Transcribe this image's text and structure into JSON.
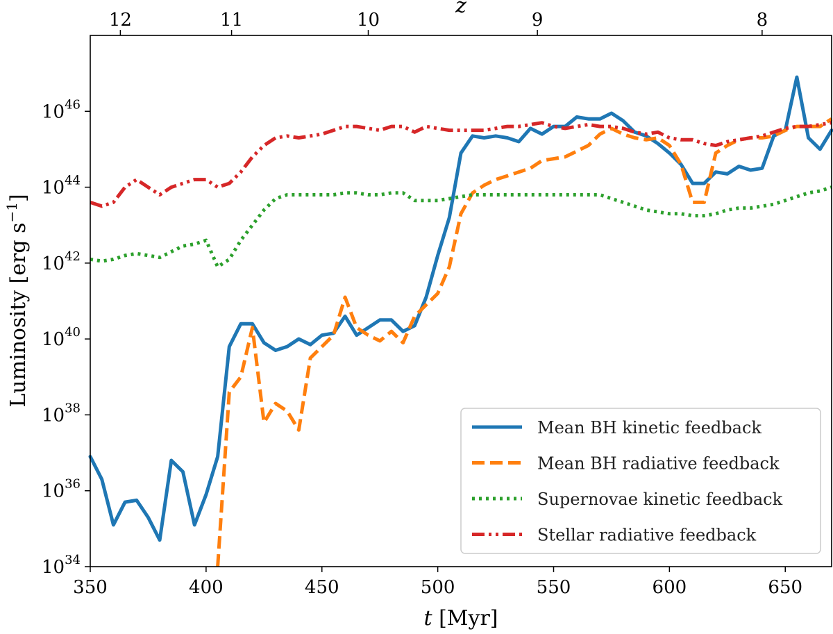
{
  "chart_data": {
    "type": "line",
    "xlabel": "t [Myr]",
    "ylabel": "Luminosity [erg s^-1]",
    "top_xlabel": "z",
    "xlim": [
      350,
      670
    ],
    "ylim_log10": [
      34,
      48
    ],
    "y_scale": "log",
    "grid": false,
    "legend_position": "bottom-right",
    "x_ticks": [
      350,
      400,
      450,
      500,
      550,
      600,
      650
    ],
    "x_tick_labels": [
      "350",
      "400",
      "450",
      "500",
      "550",
      "600",
      "650"
    ],
    "y_ticks_log10": [
      34,
      36,
      38,
      40,
      42,
      44,
      46
    ],
    "y_tick_labels": [
      "10^34",
      "10^36",
      "10^38",
      "10^40",
      "10^42",
      "10^44",
      "10^46"
    ],
    "top_ticks": [
      {
        "label": "12",
        "t": 363
      },
      {
        "label": "11",
        "t": 411
      },
      {
        "label": "10",
        "t": 470
      },
      {
        "label": "9",
        "t": 543
      },
      {
        "label": "8",
        "t": 640
      }
    ],
    "series": [
      {
        "name": "Mean BH kinetic feedback",
        "color": "#1f77b4",
        "style": "solid",
        "t": [
          350,
          355,
          360,
          365,
          370,
          375,
          380,
          385,
          390,
          395,
          400,
          405,
          410,
          415,
          420,
          425,
          430,
          435,
          440,
          445,
          450,
          455,
          460,
          465,
          470,
          475,
          480,
          485,
          490,
          495,
          500,
          505,
          510,
          515,
          520,
          525,
          530,
          535,
          540,
          545,
          550,
          555,
          560,
          565,
          570,
          575,
          580,
          585,
          590,
          595,
          600,
          605,
          610,
          615,
          620,
          625,
          630,
          635,
          640,
          645,
          650,
          655,
          660,
          665,
          670
        ],
        "log10_L": [
          36.9,
          36.3,
          35.1,
          35.7,
          35.75,
          35.3,
          34.7,
          36.8,
          36.5,
          35.1,
          35.9,
          36.9,
          39.8,
          40.4,
          40.4,
          39.9,
          39.7,
          39.8,
          40.0,
          39.85,
          40.1,
          40.15,
          40.6,
          40.1,
          40.3,
          40.5,
          40.5,
          40.2,
          40.35,
          41.1,
          42.2,
          43.2,
          44.9,
          45.35,
          45.3,
          45.35,
          45.3,
          45.2,
          45.55,
          45.4,
          45.6,
          45.6,
          45.85,
          45.8,
          45.8,
          45.95,
          45.75,
          45.45,
          45.35,
          45.15,
          44.9,
          44.6,
          44.1,
          44.1,
          44.4,
          44.35,
          44.55,
          44.45,
          44.5,
          45.35,
          45.5,
          46.9,
          45.3,
          45.0,
          45.5
        ]
      },
      {
        "name": "Mean BH radiative feedback",
        "color": "#ff7f0e",
        "style": "dashed",
        "t": [
          405,
          410,
          415,
          420,
          425,
          430,
          435,
          440,
          445,
          450,
          455,
          460,
          465,
          470,
          475,
          480,
          485,
          490,
          495,
          500,
          505,
          510,
          515,
          520,
          525,
          530,
          535,
          540,
          545,
          550,
          555,
          560,
          565,
          570,
          575,
          580,
          585,
          590,
          595,
          600,
          605,
          610,
          615,
          620,
          625,
          630,
          635,
          640,
          645,
          650,
          655,
          660,
          665,
          670
        ],
        "log10_L": [
          34.0,
          38.6,
          39.0,
          40.3,
          37.8,
          38.3,
          38.1,
          37.6,
          39.5,
          39.8,
          40.1,
          41.1,
          40.3,
          40.1,
          39.95,
          40.2,
          39.9,
          40.6,
          40.9,
          41.2,
          41.9,
          43.3,
          43.85,
          44.05,
          44.2,
          44.3,
          44.4,
          44.5,
          44.7,
          44.75,
          44.8,
          44.95,
          45.1,
          45.4,
          45.55,
          45.4,
          45.3,
          45.25,
          45.3,
          45.1,
          44.6,
          43.6,
          43.6,
          44.9,
          45.1,
          45.25,
          45.3,
          45.3,
          45.35,
          45.5,
          45.6,
          45.6,
          45.6,
          45.8
        ]
      },
      {
        "name": "Supernovae kinetic feedback",
        "color": "#2ca02c",
        "style": "dotted",
        "t": [
          350,
          355,
          360,
          365,
          370,
          375,
          380,
          385,
          390,
          395,
          400,
          405,
          410,
          415,
          420,
          425,
          430,
          435,
          440,
          445,
          450,
          455,
          460,
          465,
          470,
          475,
          480,
          485,
          490,
          495,
          500,
          505,
          510,
          515,
          520,
          525,
          530,
          535,
          540,
          545,
          550,
          555,
          560,
          565,
          570,
          575,
          580,
          585,
          590,
          595,
          600,
          605,
          610,
          615,
          620,
          625,
          630,
          635,
          640,
          645,
          650,
          655,
          660,
          665,
          670
        ],
        "log10_L": [
          42.1,
          42.05,
          42.1,
          42.2,
          42.25,
          42.2,
          42.15,
          42.3,
          42.45,
          42.5,
          42.6,
          41.9,
          42.1,
          42.6,
          43.0,
          43.4,
          43.7,
          43.8,
          43.8,
          43.8,
          43.8,
          43.8,
          43.85,
          43.85,
          43.8,
          43.8,
          43.85,
          43.85,
          43.65,
          43.65,
          43.65,
          43.7,
          43.75,
          43.8,
          43.8,
          43.8,
          43.8,
          43.8,
          43.8,
          43.8,
          43.8,
          43.8,
          43.8,
          43.8,
          43.8,
          43.7,
          43.6,
          43.5,
          43.4,
          43.35,
          43.3,
          43.3,
          43.25,
          43.25,
          43.3,
          43.4,
          43.45,
          43.45,
          43.5,
          43.55,
          43.65,
          43.75,
          43.85,
          43.9,
          44.0
        ]
      },
      {
        "name": "Stellar radiative feedback",
        "color": "#d62728",
        "style": "dashdotdot",
        "t": [
          350,
          355,
          360,
          365,
          370,
          375,
          380,
          385,
          390,
          395,
          400,
          405,
          410,
          415,
          420,
          425,
          430,
          435,
          440,
          445,
          450,
          455,
          460,
          465,
          470,
          475,
          480,
          485,
          490,
          495,
          500,
          505,
          510,
          515,
          520,
          525,
          530,
          535,
          540,
          545,
          550,
          555,
          560,
          565,
          570,
          575,
          580,
          585,
          590,
          595,
          600,
          605,
          610,
          615,
          620,
          625,
          630,
          635,
          640,
          645,
          650,
          655,
          660,
          665,
          670
        ],
        "log10_L": [
          43.6,
          43.5,
          43.6,
          44.0,
          44.2,
          44.0,
          43.8,
          44.0,
          44.1,
          44.2,
          44.2,
          44.0,
          44.1,
          44.4,
          44.8,
          45.1,
          45.3,
          45.35,
          45.3,
          45.35,
          45.4,
          45.5,
          45.6,
          45.6,
          45.55,
          45.5,
          45.6,
          45.6,
          45.45,
          45.6,
          45.55,
          45.5,
          45.5,
          45.5,
          45.5,
          45.55,
          45.6,
          45.6,
          45.65,
          45.7,
          45.6,
          45.55,
          45.6,
          45.65,
          45.6,
          45.6,
          45.55,
          45.45,
          45.4,
          45.45,
          45.3,
          45.25,
          45.25,
          45.15,
          45.1,
          45.2,
          45.25,
          45.3,
          45.35,
          45.45,
          45.55,
          45.6,
          45.6,
          45.65,
          45.7
        ]
      }
    ]
  }
}
